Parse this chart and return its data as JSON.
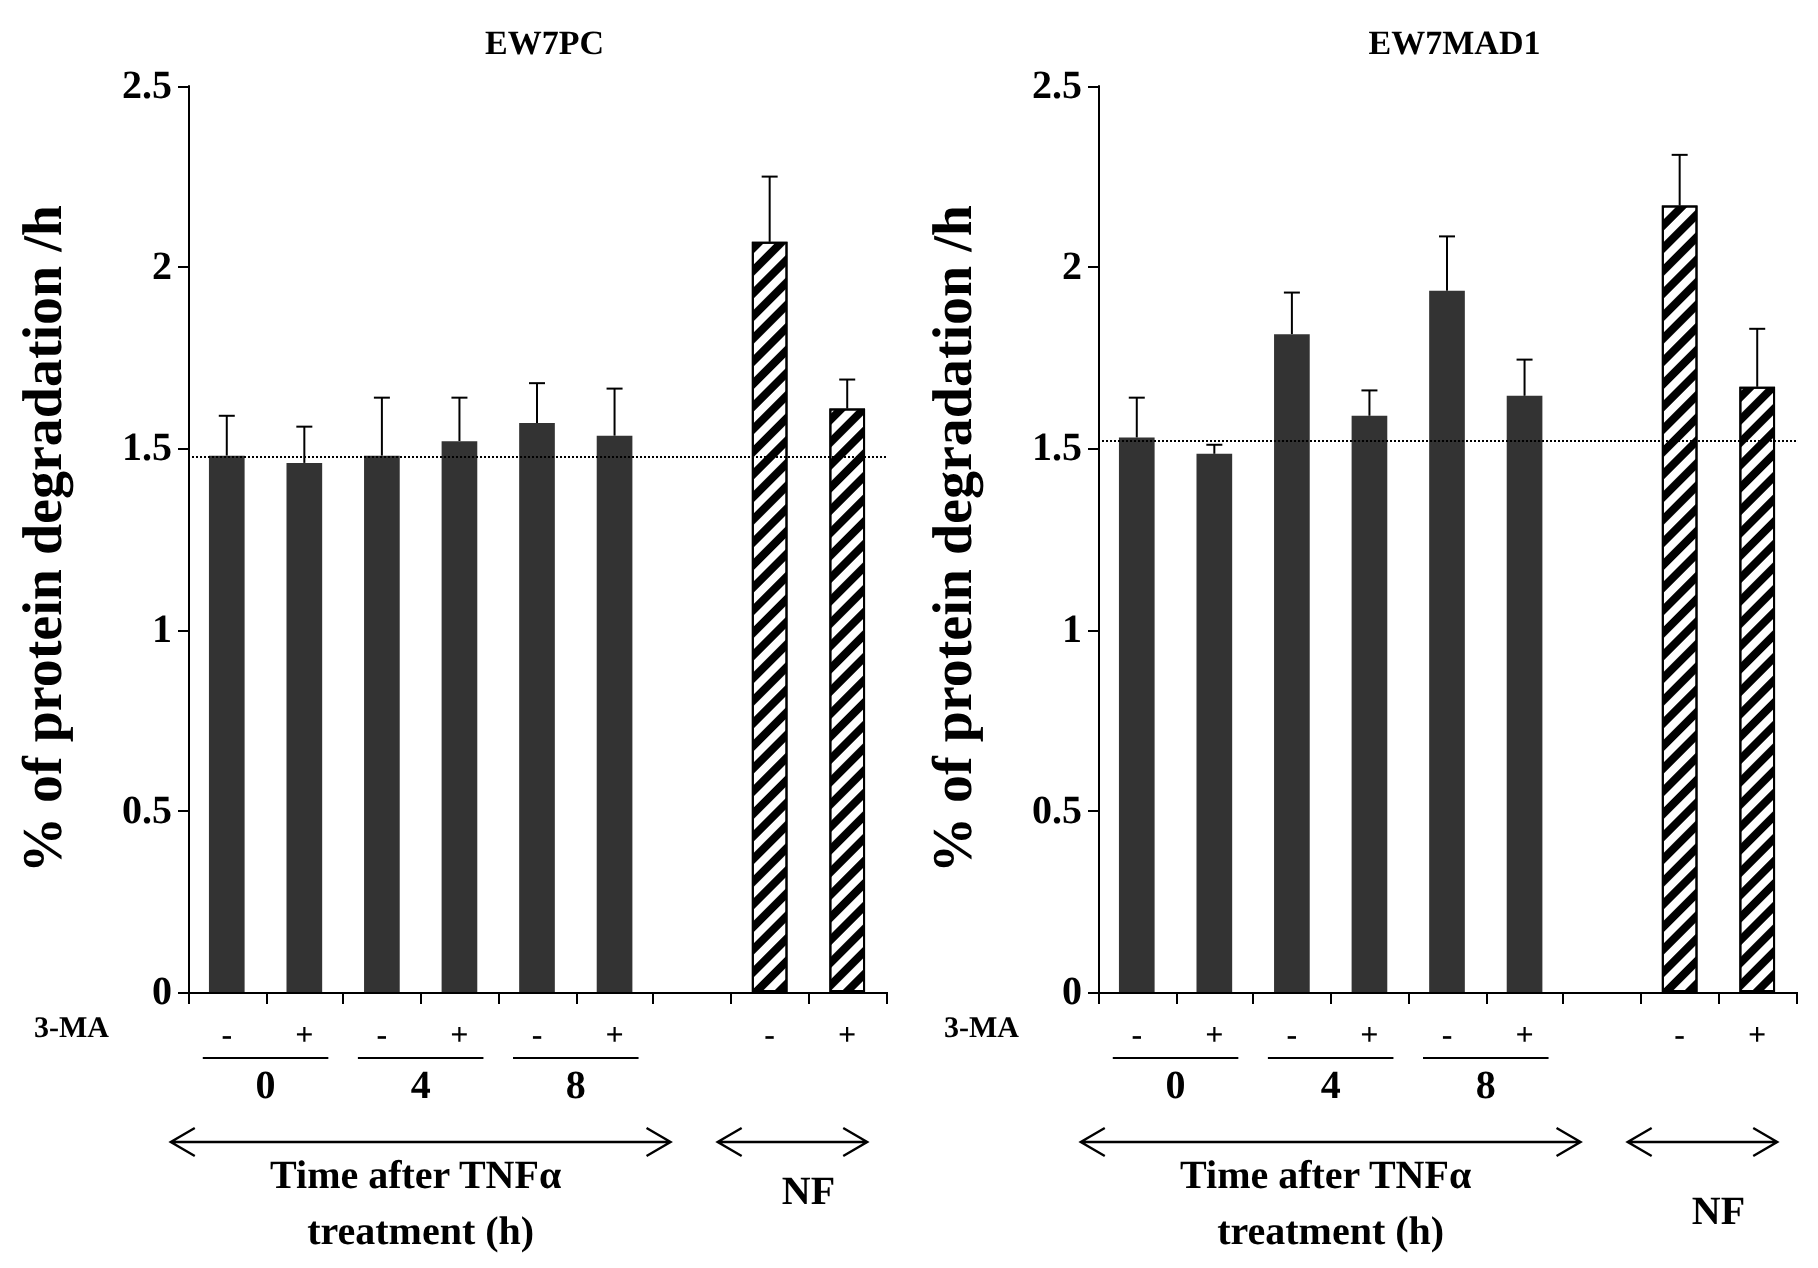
{
  "chart_data": [
    {
      "type": "bar",
      "title": "EW7PC",
      "ylabel": "% of protein degradation /h",
      "xlabel": "Time after TNFα treatment (h)",
      "categories": [
        "-",
        "+",
        "-",
        "+",
        "-",
        "+",
        null,
        "-",
        "+"
      ],
      "values": [
        1.48,
        1.46,
        1.48,
        1.52,
        1.57,
        1.535,
        null,
        2.07,
        1.61
      ],
      "errors": [
        [
          1.48,
          1.59
        ],
        [
          1.46,
          1.56
        ],
        [
          1.48,
          1.64
        ],
        [
          1.52,
          1.64
        ],
        [
          1.57,
          1.68
        ],
        [
          1.535,
          1.665
        ],
        null,
        [
          2.07,
          2.25
        ],
        [
          1.61,
          1.69
        ]
      ],
      "colors": [
        "#333333",
        "#333333",
        "#333333",
        "#333333",
        "#333333",
        "#333333",
        "#333333",
        "#ffffff",
        "#ffffff"
      ],
      "ylim": [
        0,
        2.5
      ],
      "yticks": [
        0,
        0.5,
        1,
        1.5,
        2,
        2.5
      ],
      "ref_lines": [
        {
          "axis": "y",
          "value": 1.48,
          "label": null,
          "line_style": "dotted"
        }
      ],
      "annotations": [
        "3-MA",
        "0",
        "4",
        "8",
        "NF"
      ]
    },
    {
      "type": "bar",
      "title": "EW7MAD1",
      "ylabel": "% of protein degradation /h",
      "xlabel": "Time after TNFα treatment (h)",
      "categories": [
        "-",
        "+",
        "-",
        "+",
        "-",
        "+",
        null,
        "-",
        "+"
      ],
      "values": [
        1.53,
        1.485,
        1.815,
        1.59,
        1.935,
        1.645,
        null,
        2.17,
        1.67
      ],
      "errors": [
        [
          1.53,
          1.64
        ],
        [
          1.485,
          1.51
        ],
        [
          1.815,
          1.93
        ],
        [
          1.59,
          1.66
        ],
        [
          1.935,
          2.085
        ],
        [
          1.645,
          1.745
        ],
        null,
        [
          2.17,
          2.31
        ],
        [
          1.67,
          1.83
        ]
      ],
      "colors": [
        "#333333",
        "#333333",
        "#333333",
        "#333333",
        "#333333",
        "#333333",
        "#333333",
        "#ffffff",
        "#ffffff"
      ],
      "ylim": [
        0,
        2.5
      ],
      "yticks": [
        0,
        0.5,
        1,
        1.5,
        2,
        2.5
      ],
      "ref_lines": [
        {
          "axis": "y",
          "value": 1.52,
          "label": null,
          "line_style": "dotted"
        }
      ],
      "annotations": [
        "3-MA",
        "0",
        "4",
        "8",
        "NF"
      ]
    }
  ]
}
